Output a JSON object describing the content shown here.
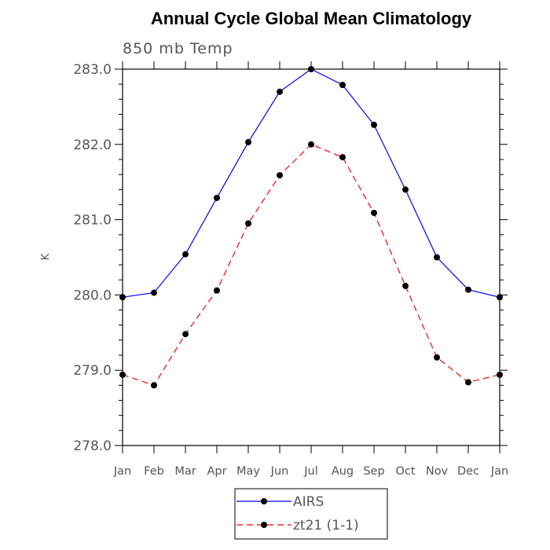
{
  "chart_data": {
    "type": "line",
    "title": "Annual Cycle Global Mean Climatology",
    "subtitle": "850 mb Temp",
    "xlabel": "",
    "ylabel": "K",
    "categories": [
      "Jan",
      "Feb",
      "Mar",
      "Apr",
      "May",
      "Jun",
      "Jul",
      "Aug",
      "Sep",
      "Oct",
      "Nov",
      "Dec",
      "Jan"
    ],
    "ylim": [
      278.0,
      283.0
    ],
    "yticks": [
      "278.0",
      "279.0",
      "280.0",
      "281.0",
      "282.0",
      "283.0"
    ],
    "grid": false,
    "legend_position": "bottom-center",
    "series": [
      {
        "name": "AIRS",
        "color": "#0000ff",
        "dash": "solid",
        "marker": "circle",
        "values": [
          279.97,
          280.03,
          280.54,
          281.29,
          282.03,
          282.7,
          283.0,
          282.79,
          282.26,
          281.4,
          280.5,
          280.07,
          279.97
        ]
      },
      {
        "name": "zt21 (1-1)",
        "color": "#ff0000",
        "dash": "dashed",
        "marker": "circle",
        "values": [
          278.94,
          278.8,
          279.48,
          280.06,
          280.95,
          281.59,
          282.0,
          281.83,
          281.09,
          280.12,
          279.17,
          278.84,
          278.94
        ]
      }
    ]
  }
}
